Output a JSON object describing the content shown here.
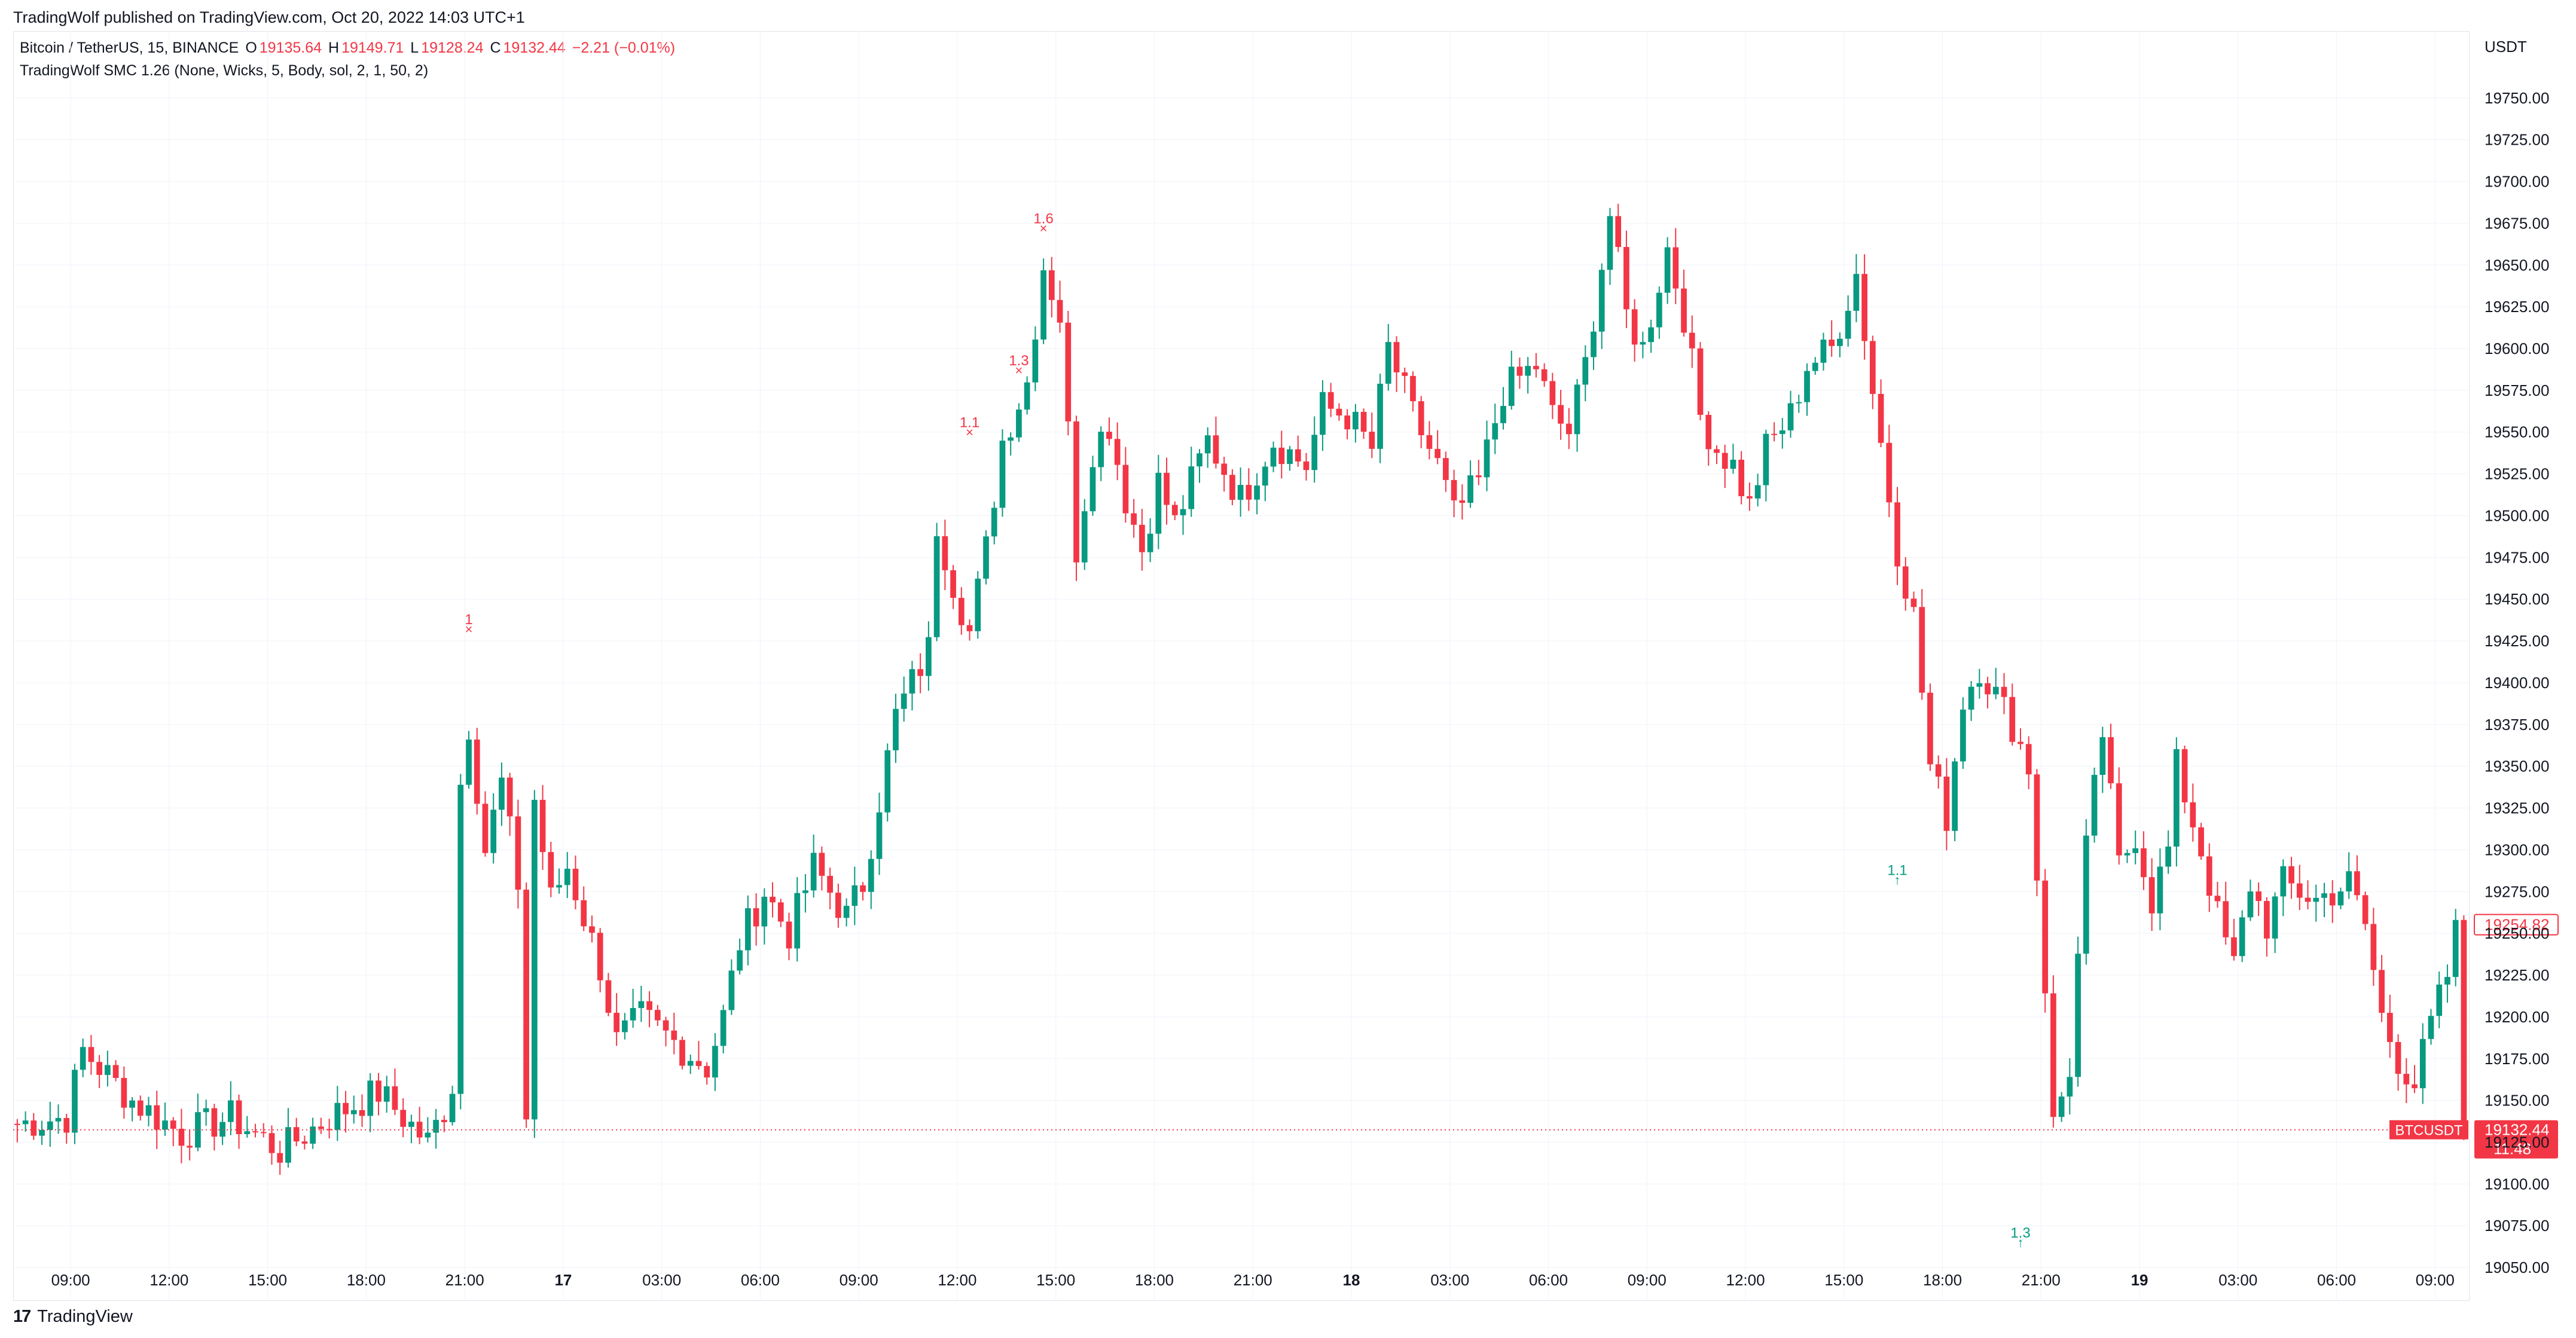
{
  "header": {
    "published": "TradingWolf published on TradingView.com, Oct 20, 2022 14:03 UTC+1"
  },
  "legend": {
    "symbol": "Bitcoin / TetherUS, 15, BINANCE",
    "o_label": "O",
    "o_value": "19135.64",
    "h_label": "H",
    "h_value": "19149.71",
    "l_label": "L",
    "l_value": "19128.24",
    "c_label": "C",
    "c_value": "19132.44",
    "change": "−2.21 (−0.01%)",
    "indicator": "TradingWolf SMC 1.26 (None, Wicks, 5, Body, sol, 2, 1, 50, 2)"
  },
  "footer": {
    "brand": "TradingView",
    "logo": "17"
  },
  "colors": {
    "up": "#089981",
    "down": "#f23645",
    "grid": "#f0f3fa",
    "axis_text": "#131722"
  },
  "chart_data": {
    "type": "candlestick",
    "symbol": "BTCUSDT",
    "currency": "USDT",
    "ylim": [
      19030,
      19790
    ],
    "y_ticks": [
      19050,
      19075,
      19100,
      19125,
      19150,
      19175,
      19200,
      19225,
      19250,
      19275,
      19300,
      19325,
      19350,
      19375,
      19400,
      19425,
      19450,
      19475,
      19500,
      19525,
      19550,
      19575,
      19600,
      19625,
      19650,
      19675,
      19700,
      19725,
      19750
    ],
    "y_tick_labels": [
      "19050.00",
      "19075.00",
      "19100.00",
      "19125.00",
      "19150.00",
      "19175.00",
      "19200.00",
      "19225.00",
      "19250.00",
      "19275.00",
      "19300.00",
      "19325.00",
      "19350.00",
      "19375.00",
      "19400.00",
      "19425.00",
      "19450.00",
      "19475.00",
      "19500.00",
      "19525.00",
      "19550.00",
      "19575.00",
      "19600.00",
      "19625.00",
      "19650.00",
      "19675.00",
      "19700.00",
      "19725.00",
      "19750.00"
    ],
    "x_ticks": [
      {
        "label": "09:00",
        "bar": 7,
        "bold": false
      },
      {
        "label": "12:00",
        "bar": 19,
        "bold": false
      },
      {
        "label": "15:00",
        "bar": 31,
        "bold": false
      },
      {
        "label": "18:00",
        "bar": 43,
        "bold": false
      },
      {
        "label": "21:00",
        "bar": 55,
        "bold": false
      },
      {
        "label": "17",
        "bar": 67,
        "bold": true
      },
      {
        "label": "03:00",
        "bar": 79,
        "bold": false
      },
      {
        "label": "06:00",
        "bar": 91,
        "bold": false
      },
      {
        "label": "09:00",
        "bar": 103,
        "bold": false
      },
      {
        "label": "12:00",
        "bar": 115,
        "bold": false
      },
      {
        "label": "15:00",
        "bar": 127,
        "bold": false
      },
      {
        "label": "18:00",
        "bar": 139,
        "bold": false
      },
      {
        "label": "21:00",
        "bar": 151,
        "bold": false
      },
      {
        "label": "18",
        "bar": 163,
        "bold": true
      },
      {
        "label": "03:00",
        "bar": 175,
        "bold": false
      },
      {
        "label": "06:00",
        "bar": 187,
        "bold": false
      },
      {
        "label": "09:00",
        "bar": 199,
        "bold": false
      },
      {
        "label": "12:00",
        "bar": 211,
        "bold": false
      },
      {
        "label": "15:00",
        "bar": 223,
        "bold": false
      },
      {
        "label": "18:00",
        "bar": 235,
        "bold": false
      },
      {
        "label": "21:00",
        "bar": 247,
        "bold": false
      },
      {
        "label": "19",
        "bar": 259,
        "bold": true
      },
      {
        "label": "03:00",
        "bar": 271,
        "bold": false
      },
      {
        "label": "06:00",
        "bar": 283,
        "bold": false
      },
      {
        "label": "09:00",
        "bar": 295,
        "bold": false
      }
    ],
    "anchors": [
      [
        0,
        19136
      ],
      [
        6,
        19140
      ],
      [
        8,
        19180
      ],
      [
        14,
        19150
      ],
      [
        20,
        19130
      ],
      [
        26,
        19140
      ],
      [
        32,
        19120
      ],
      [
        38,
        19140
      ],
      [
        44,
        19155
      ],
      [
        50,
        19125
      ],
      [
        52,
        19145
      ],
      [
        53,
        19160
      ],
      [
        54,
        19340
      ],
      [
        55,
        19375
      ],
      [
        57,
        19300
      ],
      [
        59,
        19340
      ],
      [
        61,
        19280
      ],
      [
        62,
        19140
      ],
      [
        63,
        19330
      ],
      [
        65,
        19270
      ],
      [
        67,
        19290
      ],
      [
        71,
        19230
      ],
      [
        73,
        19185
      ],
      [
        76,
        19200
      ],
      [
        80,
        19185
      ],
      [
        84,
        19170
      ],
      [
        86,
        19200
      ],
      [
        88,
        19245
      ],
      [
        91,
        19275
      ],
      [
        94,
        19250
      ],
      [
        97,
        19290
      ],
      [
        101,
        19260
      ],
      [
        103,
        19280
      ],
      [
        105,
        19330
      ],
      [
        107,
        19380
      ],
      [
        109,
        19400
      ],
      [
        111,
        19420
      ],
      [
        112,
        19495
      ],
      [
        114,
        19460
      ],
      [
        116,
        19430
      ],
      [
        118,
        19480
      ],
      [
        120,
        19545
      ],
      [
        123,
        19580
      ],
      [
        125,
        19650
      ],
      [
        127,
        19620
      ],
      [
        129,
        19480
      ],
      [
        131,
        19540
      ],
      [
        133,
        19555
      ],
      [
        135,
        19510
      ],
      [
        137,
        19480
      ],
      [
        139,
        19520
      ],
      [
        141,
        19495
      ],
      [
        145,
        19545
      ],
      [
        149,
        19510
      ],
      [
        153,
        19545
      ],
      [
        157,
        19530
      ],
      [
        159,
        19565
      ],
      [
        162,
        19560
      ],
      [
        165,
        19540
      ],
      [
        167,
        19600
      ],
      [
        170,
        19560
      ],
      [
        173,
        19530
      ],
      [
        175,
        19500
      ],
      [
        178,
        19520
      ],
      [
        181,
        19575
      ],
      [
        185,
        19590
      ],
      [
        187,
        19560
      ],
      [
        189,
        19550
      ],
      [
        191,
        19590
      ],
      [
        194,
        19680
      ],
      [
        196,
        19620
      ],
      [
        198,
        19600
      ],
      [
        201,
        19660
      ],
      [
        203,
        19620
      ],
      [
        205,
        19560
      ],
      [
        207,
        19540
      ],
      [
        209,
        19530
      ],
      [
        211,
        19505
      ],
      [
        213,
        19540
      ],
      [
        216,
        19560
      ],
      [
        218,
        19590
      ],
      [
        221,
        19600
      ],
      [
        224,
        19645
      ],
      [
        226,
        19575
      ],
      [
        229,
        19480
      ],
      [
        231,
        19440
      ],
      [
        233,
        19350
      ],
      [
        235,
        19320
      ],
      [
        237,
        19390
      ],
      [
        239,
        19410
      ],
      [
        243,
        19375
      ],
      [
        245,
        19350
      ],
      [
        247,
        19220
      ],
      [
        248,
        19135
      ],
      [
        250,
        19170
      ],
      [
        252,
        19300
      ],
      [
        254,
        19370
      ],
      [
        256,
        19290
      ],
      [
        258,
        19310
      ],
      [
        260,
        19270
      ],
      [
        262,
        19300
      ],
      [
        263,
        19350
      ],
      [
        266,
        19300
      ],
      [
        268,
        19260
      ],
      [
        270,
        19230
      ],
      [
        272,
        19280
      ],
      [
        274,
        19255
      ],
      [
        276,
        19280
      ],
      [
        280,
        19270
      ],
      [
        284,
        19280
      ],
      [
        286,
        19255
      ],
      [
        288,
        19200
      ],
      [
        290,
        19175
      ],
      [
        292,
        19160
      ],
      [
        294,
        19195
      ],
      [
        296,
        19225
      ],
      [
        298,
        19275
      ]
    ],
    "bar_count": 299,
    "last_price": 19132.44,
    "last_price_label": "19132.44",
    "countdown": "11:48",
    "symbol_tag": "BTCUSDT",
    "level_price": 19254.82,
    "level_label": "19254.82",
    "markers": [
      {
        "bar": 55,
        "price": 19435,
        "label": "1",
        "type": "high"
      },
      {
        "bar": 116,
        "price": 19553,
        "label": "1.1",
        "type": "high"
      },
      {
        "bar": 122,
        "price": 19590,
        "label": "1.3",
        "type": "high"
      },
      {
        "bar": 125,
        "price": 19675,
        "label": "1.6",
        "type": "high"
      },
      {
        "bar": 229,
        "price": 19285,
        "label": "1.1",
        "type": "low"
      },
      {
        "bar": 244,
        "price": 19068,
        "label": "1.3",
        "type": "low"
      }
    ]
  }
}
